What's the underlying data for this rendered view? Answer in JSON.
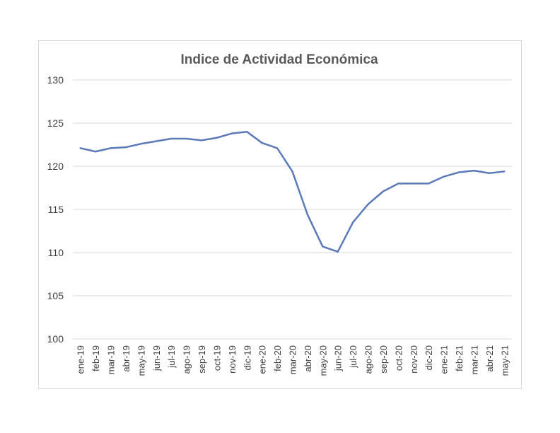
{
  "chart_data": {
    "type": "line",
    "title": "Indice de Actividad Económica",
    "xlabel": "",
    "ylabel": "",
    "ylim": [
      100,
      130
    ],
    "y_ticks": [
      100,
      105,
      110,
      115,
      120,
      125,
      130
    ],
    "grid": true,
    "legend": "none",
    "categories": [
      "ene-19",
      "feb-19",
      "mar-19",
      "abr-19",
      "may-19",
      "jun-19",
      "jul-19",
      "ago-19",
      "sep-19",
      "oct-19",
      "nov-19",
      "dic-19",
      "ene-20",
      "feb-20",
      "mar-20",
      "abr-20",
      "may-20",
      "jun-20",
      "jul-20",
      "ago-20",
      "sep-20",
      "oct-20",
      "nov-20",
      "dic-20",
      "ene-21",
      "feb-21",
      "mar-21",
      "abr-21",
      "may-21"
    ],
    "series": [
      {
        "color": "#5b7ab8",
        "values": [
          122.1,
          121.7,
          122.1,
          122.2,
          122.6,
          122.9,
          123.2,
          123.2,
          123.0,
          123.3,
          123.8,
          124.0,
          122.7,
          122.1,
          119.4,
          114.4,
          110.7,
          110.1,
          113.5,
          115.6,
          117.1,
          118.0,
          118.0,
          118.0,
          118.8,
          119.3,
          119.5,
          119.2,
          119.4
        ]
      }
    ],
    "colors": {
      "line": "#5b7ab8",
      "grid": "#d9d9d9",
      "text": "#404040",
      "title": "#595959"
    }
  }
}
